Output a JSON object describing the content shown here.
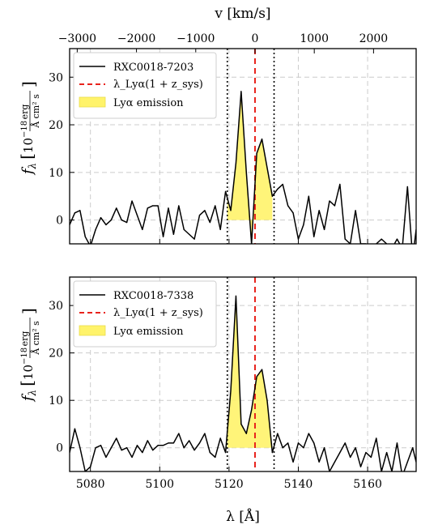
{
  "figure": {
    "top_axis_label": "v [km/s]",
    "bottom_axis_label": "λ [Å]",
    "ylabel_main": "f",
    "ylabel_sub": "λ",
    "ylabel_scale": "10",
    "ylabel_exponent": "−18",
    "ylabel_units_num": "erg",
    "ylabel_units_den": "Å cm² s"
  },
  "colors": {
    "spectrum": "#000000",
    "systemic_line": "#e8231c",
    "emission_fill": "#fff36a",
    "grid": "#cccccc"
  },
  "chart_data": [
    {
      "type": "line",
      "title": "",
      "xlabel": "λ [Å]",
      "ylabel": "f_λ [10^-18 erg/(Å cm² s)]",
      "xlim": [
        5074,
        5174
      ],
      "ylim": [
        -5,
        36
      ],
      "top_axis": {
        "label": "v [km/s]",
        "ticks": [
          -3000,
          -2000,
          -1000,
          0,
          1000,
          2000
        ],
        "tick_labels": [
          "−3000",
          "−2000",
          "−1000",
          "0",
          "1000",
          "2000"
        ]
      },
      "x_ticks": [
        5080,
        5100,
        5120,
        5140,
        5160
      ],
      "y_ticks": [
        0,
        10,
        20,
        30
      ],
      "grid": true,
      "legend_position": "top-left",
      "legend": [
        {
          "label": "RXC0018-7203",
          "style": "solid black line"
        },
        {
          "label": "λ_Lyα(1 + z_sys)",
          "style": "dashed red line"
        },
        {
          "label": "Lyα emission",
          "style": "yellow patch"
        }
      ],
      "vlines": {
        "systemic": 5127.5,
        "window_left": 5119.5,
        "window_right": 5133.0
      },
      "emission_window": [
        5119.5,
        5132.5
      ],
      "series": [
        {
          "name": "RXC0018-7203",
          "x": [
            5074,
            5075.5,
            5077,
            5078.5,
            5080,
            5081.5,
            5083,
            5084.5,
            5086,
            5087.5,
            5089,
            5090.5,
            5092,
            5093.5,
            5095,
            5096.5,
            5098,
            5099.5,
            5101,
            5102.5,
            5104,
            5105.5,
            5107,
            5108.5,
            5110,
            5111.5,
            5113,
            5114.5,
            5116,
            5117.5,
            5119,
            5120.5,
            5122,
            5123.5,
            5125,
            5126.5,
            5128,
            5129.5,
            5131,
            5132.5,
            5134,
            5135.5,
            5137,
            5138.5,
            5140,
            5141.5,
            5143,
            5144.5,
            5146,
            5147.5,
            5149,
            5150.5,
            5152,
            5153.5,
            5155,
            5156.5,
            5158,
            5159.5,
            5161,
            5162.5,
            5164,
            5165.5,
            5167,
            5168.5,
            5170,
            5171.5,
            5173,
            5174
          ],
          "y": [
            -1,
            1.5,
            2,
            -3.5,
            -5.5,
            -2,
            0.5,
            -1,
            0,
            2.5,
            0,
            -0.5,
            4,
            1,
            -2,
            2.5,
            3,
            3,
            -3.5,
            2.5,
            -3,
            3,
            -2,
            -3,
            -4,
            1,
            2,
            -0.5,
            3,
            -2,
            6,
            2,
            12,
            27,
            10,
            -5,
            14,
            17,
            11,
            5,
            6.5,
            7.5,
            3,
            1.5,
            -4,
            -1,
            5,
            -3.5,
            2,
            -2,
            4,
            3,
            7.5,
            -4,
            -5,
            2,
            -5,
            -5,
            -6,
            -5,
            -4,
            -5,
            -6,
            -4,
            -6,
            7,
            -8,
            -2
          ]
        }
      ]
    },
    {
      "type": "line",
      "title": "",
      "xlabel": "λ [Å]",
      "ylabel": "f_λ [10^-18 erg/(Å cm² s)]",
      "xlim": [
        5074,
        5174
      ],
      "ylim": [
        -5,
        36
      ],
      "x_ticks": [
        5080,
        5100,
        5120,
        5140,
        5160
      ],
      "x_tick_labels": [
        "5080",
        "5100",
        "5120",
        "5140",
        "5160"
      ],
      "y_ticks": [
        0,
        10,
        20,
        30
      ],
      "grid": true,
      "legend_position": "top-left",
      "legend": [
        {
          "label": "RXC0018-7338",
          "style": "solid black line"
        },
        {
          "label": "λ_Lyα(1 + z_sys)",
          "style": "dashed red line"
        },
        {
          "label": "Lyα emission",
          "style": "yellow patch"
        }
      ],
      "vlines": {
        "systemic": 5127.5,
        "window_left": 5119.5,
        "window_right": 5133.0
      },
      "emission_window": [
        5119.5,
        5132.5
      ],
      "series": [
        {
          "name": "RXC0018-7338",
          "x": [
            5074,
            5075.5,
            5077,
            5078.5,
            5080,
            5081.5,
            5083,
            5084.5,
            5086,
            5087.5,
            5089,
            5090.5,
            5092,
            5093.5,
            5095,
            5096.5,
            5098,
            5099.5,
            5101,
            5102.5,
            5104,
            5105.5,
            5107,
            5108.5,
            5110,
            5111.5,
            5113,
            5114.5,
            5116,
            5117.5,
            5119,
            5120.5,
            5122,
            5123.5,
            5125,
            5126.5,
            5128,
            5129.5,
            5131,
            5132.5,
            5134,
            5135.5,
            5137,
            5138.5,
            5140,
            5141.5,
            5143,
            5144.5,
            5146,
            5147.5,
            5149,
            5150.5,
            5152,
            5153.5,
            5155,
            5156.5,
            5158,
            5159.5,
            5161,
            5162.5,
            5164,
            5165.5,
            5167,
            5168.5,
            5170,
            5171.5,
            5173,
            5174
          ],
          "y": [
            -1,
            4,
            0,
            -5,
            -4,
            0,
            0.5,
            -2,
            0,
            2,
            -0.5,
            0,
            -2,
            0.5,
            -1,
            1.5,
            -0.5,
            0.5,
            0.5,
            1,
            1,
            3,
            0,
            1.5,
            -0.5,
            1,
            3,
            -1,
            -2,
            2,
            -1,
            12,
            32,
            5,
            3,
            8,
            15,
            16.5,
            10,
            -1,
            3,
            0,
            1,
            -3,
            1,
            0,
            3,
            1,
            -3,
            0,
            -5,
            -3,
            -1,
            1,
            -2,
            0,
            -4,
            -1,
            -2,
            2,
            -5,
            -1,
            -5,
            1,
            -6,
            -3,
            0,
            -3
          ]
        }
      ]
    }
  ]
}
